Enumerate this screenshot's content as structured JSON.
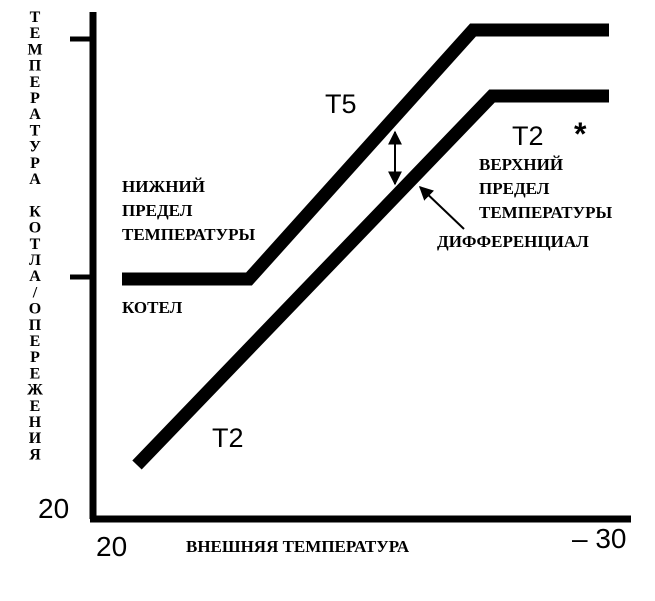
{
  "y_axis": {
    "label_chars": [
      "Т",
      "Е",
      "М",
      "П",
      "Е",
      "Р",
      "А",
      "Т",
      "У",
      "Р",
      "А",
      " ",
      "К",
      "О",
      "Т",
      "Л",
      "А",
      "/",
      "О",
      "П",
      "Е",
      "Р",
      "Е",
      "Ж",
      "Е",
      "Н",
      "И",
      "Я"
    ],
    "min_label": "20"
  },
  "x_axis": {
    "label": "ВНЕШНЯЯ ТЕМПЕРАТУРА",
    "min_label": "20",
    "max_label": "– 30"
  },
  "lines": {
    "t5_label": "T5",
    "t2_label": "T2",
    "t2_star_label": "T2",
    "star": "*"
  },
  "annotations": {
    "lower_limit": [
      "НИЖНИЙ",
      "ПРЕДЕЛ",
      "ТЕМПЕРАТУРЫ"
    ],
    "boiler": "КОТЕЛ",
    "upper_limit": [
      "ВЕРХНИЙ",
      "ПРЕДЕЛ",
      "ТЕМПЕРАТУРЫ"
    ],
    "differential": "ДИФФЕРЕНЦИАЛ"
  },
  "colors": {
    "ink": "#000000",
    "background": "#ffffff"
  }
}
